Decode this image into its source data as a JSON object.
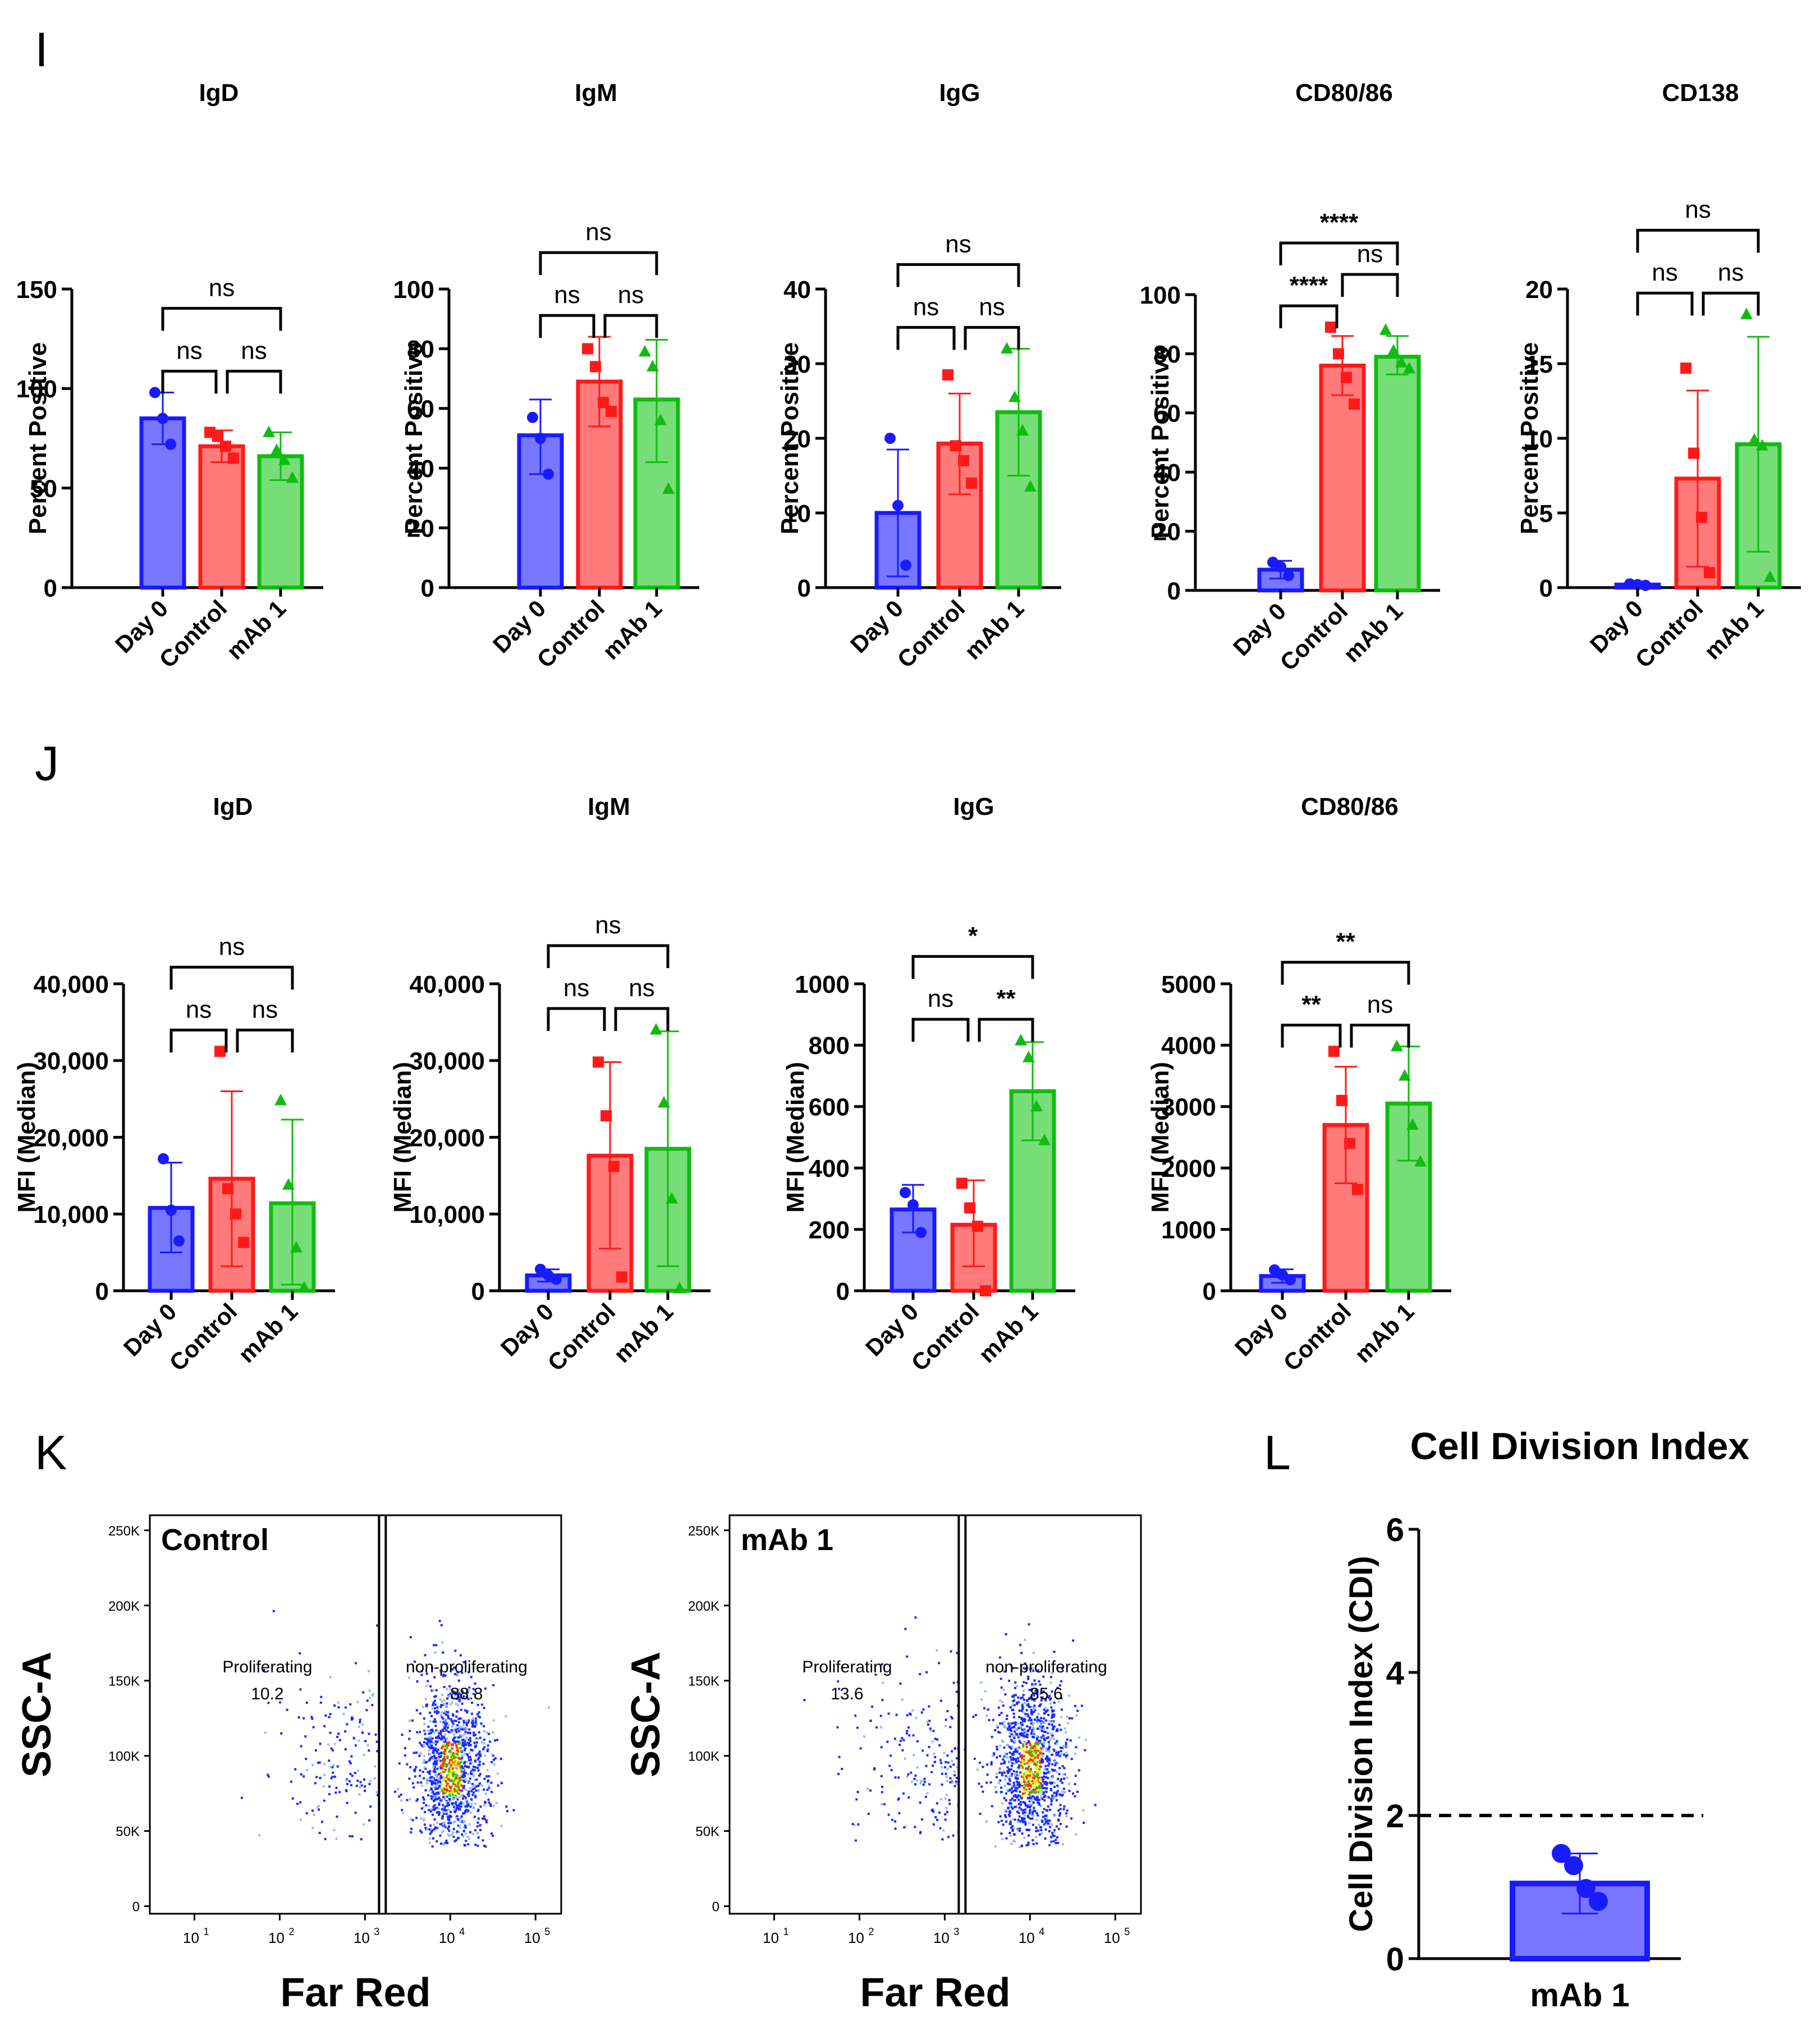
{
  "panel_labels": {
    "I": "I",
    "J": "J",
    "K": "K",
    "L": "L"
  },
  "colors": {
    "day0": "#1a1aff",
    "control": "#ff1a1a",
    "mab1": "#11bb11",
    "day0_fill": "#7777ff",
    "control_fill": "#ff7b7b",
    "mab1_fill": "#77dd77",
    "axis": "#000000"
  },
  "categories": [
    "Day 0",
    "Control",
    "mAb 1"
  ],
  "chart_data": [
    {
      "panel": "I",
      "type": "bar",
      "title": "IgD",
      "ylabel": "Percent Positive",
      "ylim": [
        0,
        150
      ],
      "yticks": [
        0,
        50,
        100,
        150
      ],
      "tick_labels": [
        "0",
        "50",
        "100",
        "150"
      ],
      "categories": [
        "Day 0",
        "Control",
        "mAb 1"
      ],
      "series": [
        {
          "name": "Day 0",
          "mean": 85,
          "sd_low": 72,
          "sd_high": 98,
          "points": [
            98,
            85,
            72
          ]
        },
        {
          "name": "Control",
          "mean": 71,
          "sd_low": 63,
          "sd_high": 79,
          "points": [
            78,
            76,
            71,
            65
          ]
        },
        {
          "name": "mAb 1",
          "mean": 66,
          "sd_low": 54,
          "sd_high": 78,
          "points": [
            78,
            69,
            64,
            55
          ]
        }
      ],
      "comparisons": [
        {
          "a": 0,
          "b": 2,
          "level": 2,
          "label": "ns"
        },
        {
          "a": 0,
          "b": 1,
          "level": 1,
          "label": "ns"
        },
        {
          "a": 1,
          "b": 2,
          "level": 1,
          "label": "ns"
        }
      ]
    },
    {
      "panel": "I",
      "type": "bar",
      "title": "IgM",
      "ylabel": "Percent Positive",
      "ylim": [
        0,
        100
      ],
      "yticks": [
        0,
        20,
        40,
        60,
        80,
        100
      ],
      "tick_labels": [
        "0",
        "20",
        "40",
        "60",
        "80",
        "100"
      ],
      "categories": [
        "Day 0",
        "Control",
        "mAb 1"
      ],
      "series": [
        {
          "name": "Day 0",
          "mean": 51,
          "sd_low": 38,
          "sd_high": 63,
          "points": [
            57,
            50,
            38
          ]
        },
        {
          "name": "Control",
          "mean": 69,
          "sd_low": 54,
          "sd_high": 84,
          "points": [
            80,
            74,
            62,
            59
          ]
        },
        {
          "name": "mAb 1",
          "mean": 63,
          "sd_low": 42,
          "sd_high": 83,
          "points": [
            79,
            74,
            56,
            33
          ]
        }
      ],
      "comparisons": [
        {
          "a": 0,
          "b": 2,
          "level": 2,
          "label": "ns"
        },
        {
          "a": 0,
          "b": 1,
          "level": 1,
          "label": "ns"
        },
        {
          "a": 1,
          "b": 2,
          "level": 1,
          "label": "ns"
        }
      ]
    },
    {
      "panel": "I",
      "type": "bar",
      "title": "IgG",
      "ylabel": "Percent Positive",
      "ylim": [
        0,
        40
      ],
      "yticks": [
        0,
        10,
        20,
        30,
        40
      ],
      "tick_labels": [
        "0",
        "10",
        "20",
        "30",
        "40"
      ],
      "categories": [
        "Day 0",
        "Control",
        "mAb 1"
      ],
      "series": [
        {
          "name": "Day 0",
          "mean": 10,
          "sd_low": 1.5,
          "sd_high": 18.5,
          "points": [
            20,
            11,
            3
          ]
        },
        {
          "name": "Control",
          "mean": 19.3,
          "sd_low": 12.5,
          "sd_high": 26,
          "points": [
            28.5,
            19,
            17,
            14
          ]
        },
        {
          "name": "mAb 1",
          "mean": 23.5,
          "sd_low": 15,
          "sd_high": 32,
          "points": [
            32,
            25.5,
            21,
            13.5
          ]
        }
      ],
      "comparisons": [
        {
          "a": 0,
          "b": 2,
          "level": 2,
          "label": "ns"
        },
        {
          "a": 0,
          "b": 1,
          "level": 1,
          "label": "ns"
        },
        {
          "a": 1,
          "b": 2,
          "level": 1,
          "label": "ns"
        }
      ]
    },
    {
      "panel": "I",
      "type": "bar",
      "title": "CD80/86",
      "ylabel": "Percent Positive",
      "ylim": [
        0,
        100
      ],
      "yticks": [
        0,
        20,
        40,
        60,
        80,
        100
      ],
      "tick_labels": [
        "0",
        "20",
        "40",
        "60",
        "80",
        "100"
      ],
      "categories": [
        "Day 0",
        "Control",
        "mAb 1"
      ],
      "series": [
        {
          "name": "Day 0",
          "mean": 7,
          "sd_low": 4,
          "sd_high": 10,
          "points": [
            9.5,
            8,
            5
          ]
        },
        {
          "name": "Control",
          "mean": 76,
          "sd_low": 66,
          "sd_high": 86,
          "points": [
            89,
            80,
            72,
            63
          ]
        },
        {
          "name": "mAb 1",
          "mean": 79,
          "sd_low": 73,
          "sd_high": 86,
          "points": [
            88,
            81,
            77,
            75
          ]
        }
      ],
      "comparisons": [
        {
          "a": 0,
          "b": 2,
          "level": 2,
          "label": "****"
        },
        {
          "a": 1,
          "b": 2,
          "level": 1.5,
          "label": "ns"
        },
        {
          "a": 0,
          "b": 1,
          "level": 1,
          "label": "****"
        }
      ]
    },
    {
      "panel": "I",
      "type": "bar",
      "title": "CD138",
      "ylabel": "Percent Positive",
      "ylim": [
        0,
        20
      ],
      "yticks": [
        0,
        5,
        10,
        15,
        20
      ],
      "tick_labels": [
        "0",
        "5",
        "10",
        "15",
        "20"
      ],
      "categories": [
        "Day 0",
        "Control",
        "mAb 1"
      ],
      "series": [
        {
          "name": "Day 0",
          "mean": 0.2,
          "sd_low": 0.1,
          "sd_high": 0.3,
          "points": [
            0.25,
            0.2,
            0.15
          ]
        },
        {
          "name": "Control",
          "mean": 7.3,
          "sd_low": 1.4,
          "sd_high": 13.2,
          "points": [
            14.7,
            9,
            4.7,
            1
          ]
        },
        {
          "name": "mAb 1",
          "mean": 9.6,
          "sd_low": 2.4,
          "sd_high": 16.8,
          "points": [
            18.3,
            9.9,
            9.5,
            0.7
          ]
        }
      ],
      "comparisons": [
        {
          "a": 0,
          "b": 2,
          "level": 2,
          "label": "ns"
        },
        {
          "a": 0,
          "b": 1,
          "level": 1,
          "label": "ns"
        },
        {
          "a": 1,
          "b": 2,
          "level": 1,
          "label": "ns"
        }
      ]
    },
    {
      "panel": "J",
      "type": "bar",
      "title": "IgD",
      "ylabel": "MFI (Median)",
      "ylim": [
        0,
        40000
      ],
      "yticks": [
        0,
        10000,
        20000,
        30000,
        40000
      ],
      "tick_labels": [
        "0",
        "10,000",
        "20,000",
        "30,000",
        "40,000"
      ],
      "categories": [
        "Day 0",
        "Control",
        "mAb 1"
      ],
      "series": [
        {
          "name": "Day 0",
          "mean": 10800,
          "sd_low": 5000,
          "sd_high": 16700,
          "points": [
            17200,
            10500,
            6500
          ]
        },
        {
          "name": "Control",
          "mean": 14600,
          "sd_low": 3200,
          "sd_high": 26000,
          "points": [
            31200,
            13300,
            10000,
            6300
          ]
        },
        {
          "name": "mAb 1",
          "mean": 11400,
          "sd_low": 800,
          "sd_high": 22300,
          "points": [
            24800,
            13800,
            5600,
            400
          ]
        }
      ],
      "comparisons": [
        {
          "a": 0,
          "b": 2,
          "level": 2,
          "label": "ns"
        },
        {
          "a": 0,
          "b": 1,
          "level": 1,
          "label": "ns"
        },
        {
          "a": 1,
          "b": 2,
          "level": 1,
          "label": "ns"
        }
      ]
    },
    {
      "panel": "J",
      "type": "bar",
      "title": "IgM",
      "ylabel": "MFI (Median)",
      "ylim": [
        0,
        40000
      ],
      "yticks": [
        0,
        10000,
        20000,
        30000,
        40000
      ],
      "tick_labels": [
        "0",
        "10,000",
        "20,000",
        "30,000",
        "40,000"
      ],
      "categories": [
        "Day 0",
        "Control",
        "mAb 1"
      ],
      "series": [
        {
          "name": "Day 0",
          "mean": 2000,
          "sd_low": 1200,
          "sd_high": 2800,
          "points": [
            2800,
            2000,
            1500
          ]
        },
        {
          "name": "Control",
          "mean": 17600,
          "sd_low": 5500,
          "sd_high": 29800,
          "points": [
            29800,
            22800,
            16200,
            1800
          ]
        },
        {
          "name": "mAb 1",
          "mean": 18500,
          "sd_low": 3200,
          "sd_high": 33800,
          "points": [
            34000,
            24500,
            12000,
            300
          ]
        }
      ],
      "comparisons": [
        {
          "a": 0,
          "b": 2,
          "level": 2,
          "label": "ns"
        },
        {
          "a": 0,
          "b": 1,
          "level": 1,
          "label": "ns"
        },
        {
          "a": 1,
          "b": 2,
          "level": 1,
          "label": "ns"
        }
      ]
    },
    {
      "panel": "J",
      "type": "bar",
      "title": "IgG",
      "ylabel": "MFI (Median)",
      "ylim": [
        0,
        1000
      ],
      "yticks": [
        0,
        200,
        400,
        600,
        800,
        1000
      ],
      "tick_labels": [
        "0",
        "200",
        "400",
        "600",
        "800",
        "1000"
      ],
      "categories": [
        "Day 0",
        "Control",
        "mAb 1"
      ],
      "series": [
        {
          "name": "Day 0",
          "mean": 265,
          "sd_low": 190,
          "sd_high": 345,
          "points": [
            320,
            280,
            190
          ]
        },
        {
          "name": "Control",
          "mean": 215,
          "sd_low": 80,
          "sd_high": 360,
          "points": [
            350,
            270,
            210,
            0
          ]
        },
        {
          "name": "mAb 1",
          "mean": 650,
          "sd_low": 490,
          "sd_high": 810,
          "points": [
            815,
            760,
            600,
            490
          ]
        }
      ],
      "comparisons": [
        {
          "a": 0,
          "b": 2,
          "level": 2,
          "label": "*"
        },
        {
          "a": 0,
          "b": 1,
          "level": 1,
          "label": "ns"
        },
        {
          "a": 1,
          "b": 2,
          "level": 1,
          "label": "**"
        }
      ]
    },
    {
      "panel": "J",
      "type": "bar",
      "title": "CD80/86",
      "ylabel": "MFI (Median)",
      "ylim": [
        0,
        5000
      ],
      "yticks": [
        0,
        1000,
        2000,
        3000,
        4000,
        5000
      ],
      "tick_labels": [
        "0",
        "1000",
        "2000",
        "3000",
        "4000",
        "5000"
      ],
      "categories": [
        "Day 0",
        "Control",
        "mAb 1"
      ],
      "series": [
        {
          "name": "Day 0",
          "mean": 240,
          "sd_low": 130,
          "sd_high": 350,
          "points": [
            340,
            260,
            180
          ]
        },
        {
          "name": "Control",
          "mean": 2700,
          "sd_low": 1750,
          "sd_high": 3650,
          "points": [
            3900,
            3100,
            2400,
            1650
          ]
        },
        {
          "name": "mAb 1",
          "mean": 3050,
          "sd_low": 2120,
          "sd_high": 3980,
          "points": [
            3980,
            3500,
            2700,
            2100
          ]
        }
      ],
      "comparisons": [
        {
          "a": 0,
          "b": 2,
          "level": 2,
          "label": "**"
        },
        {
          "a": 0,
          "b": 1,
          "level": 1,
          "label": "**"
        },
        {
          "a": 1,
          "b": 2,
          "level": 1,
          "label": "ns"
        }
      ]
    },
    {
      "panel": "K",
      "type": "scatter",
      "title": "Control",
      "xlabel": "Far Red",
      "ylabel": "SSC-A",
      "xscale": "log",
      "x_tick_labels": [
        "10",
        "10",
        "10",
        "10",
        "10"
      ],
      "x_tick_exponents": [
        "1",
        "2",
        "3",
        "4",
        "5"
      ],
      "x_tick_values": [
        10,
        100,
        1000,
        10000,
        100000
      ],
      "y_tick_labels": [
        "0",
        "50K",
        "100K",
        "150K",
        "200K",
        "250K"
      ],
      "y_tick_values": [
        0,
        50000,
        100000,
        150000,
        200000,
        250000
      ],
      "xlim": [
        3,
        200000
      ],
      "ylim": [
        -5000,
        260000
      ],
      "gate_x": 1600,
      "gates": [
        {
          "name": "Proliferating",
          "value": "10.2"
        },
        {
          "name": "non-proliferating",
          "value": "88.8"
        }
      ]
    },
    {
      "panel": "K",
      "type": "scatter",
      "title": "mAb 1",
      "xlabel": "Far Red",
      "ylabel": "SSC-A",
      "xscale": "log",
      "x_tick_labels": [
        "10",
        "10",
        "10",
        "10",
        "10"
      ],
      "x_tick_exponents": [
        "1",
        "2",
        "3",
        "4",
        "5"
      ],
      "x_tick_values": [
        10,
        100,
        1000,
        10000,
        100000
      ],
      "y_tick_labels": [
        "0",
        "50K",
        "100K",
        "150K",
        "200K",
        "250K"
      ],
      "y_tick_values": [
        0,
        50000,
        100000,
        150000,
        200000,
        250000
      ],
      "xlim": [
        3,
        200000
      ],
      "ylim": [
        -5000,
        260000
      ],
      "gate_x": 1600,
      "gates": [
        {
          "name": "Proliferating",
          "value": "13.6"
        },
        {
          "name": "non-proliferating",
          "value": "85.6"
        }
      ]
    },
    {
      "panel": "L",
      "type": "bar",
      "title": "Cell Division Index",
      "ylabel": "Cell Division Index (CDI)",
      "ylim": [
        0,
        6
      ],
      "yticks": [
        0,
        2,
        4,
        6
      ],
      "tick_labels": [
        "0",
        "2",
        "4",
        "6"
      ],
      "categories": [
        "mAb 1"
      ],
      "reference_line": 2,
      "series": [
        {
          "name": "mAb 1",
          "mean": 1.05,
          "sd_low": 0.63,
          "sd_high": 1.47,
          "points": [
            1.47,
            1.3,
            0.98,
            0.8
          ]
        }
      ]
    }
  ]
}
